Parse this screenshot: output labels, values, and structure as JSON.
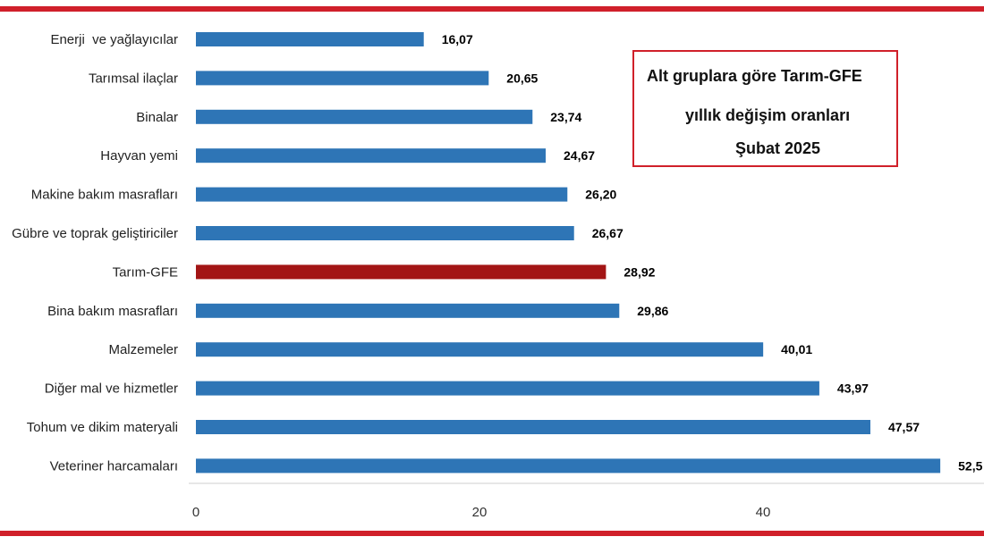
{
  "colors": {
    "frame_red": "#d0202a",
    "bar_blue": "#2e75b6",
    "bar_highlight": "#a31515"
  },
  "title_box": {
    "line1": "Alt gruplara göre Tarım-GFE",
    "line2": "yıllık değişim oranları",
    "line3": "Şubat 2025"
  },
  "chart_data": {
    "type": "bar",
    "orientation": "horizontal",
    "title": "Alt gruplara göre Tarım-GFE yıllık değişim oranları Şubat 2025",
    "categories": [
      "Enerji  ve yağlayıcılar",
      "Tarımsal ilaçlar",
      "Binalar",
      "Hayvan yemi",
      "Makine bakım masrafları",
      "Gübre ve toprak geliştiriciler",
      "Tarım-GFE",
      "Bina bakım masrafları",
      "Malzemeler",
      "Diğer mal ve hizmetler",
      "Tohum ve dikim materyali",
      "Veteriner harcamaları"
    ],
    "values": [
      16.07,
      20.65,
      23.74,
      24.67,
      26.2,
      26.67,
      28.92,
      29.86,
      40.01,
      43.97,
      47.57,
      52.5
    ],
    "value_labels": [
      "16,07",
      "20,65",
      "23,74",
      "24,67",
      "26,20",
      "26,67",
      "28,92",
      "29,86",
      "40,01",
      "43,97",
      "47,57",
      "52,5"
    ],
    "highlight_category": "Tarım-GFE",
    "xticks": [
      "0",
      "20",
      "40"
    ],
    "xlim": [
      0,
      60
    ],
    "grid": false,
    "legend": "none"
  }
}
